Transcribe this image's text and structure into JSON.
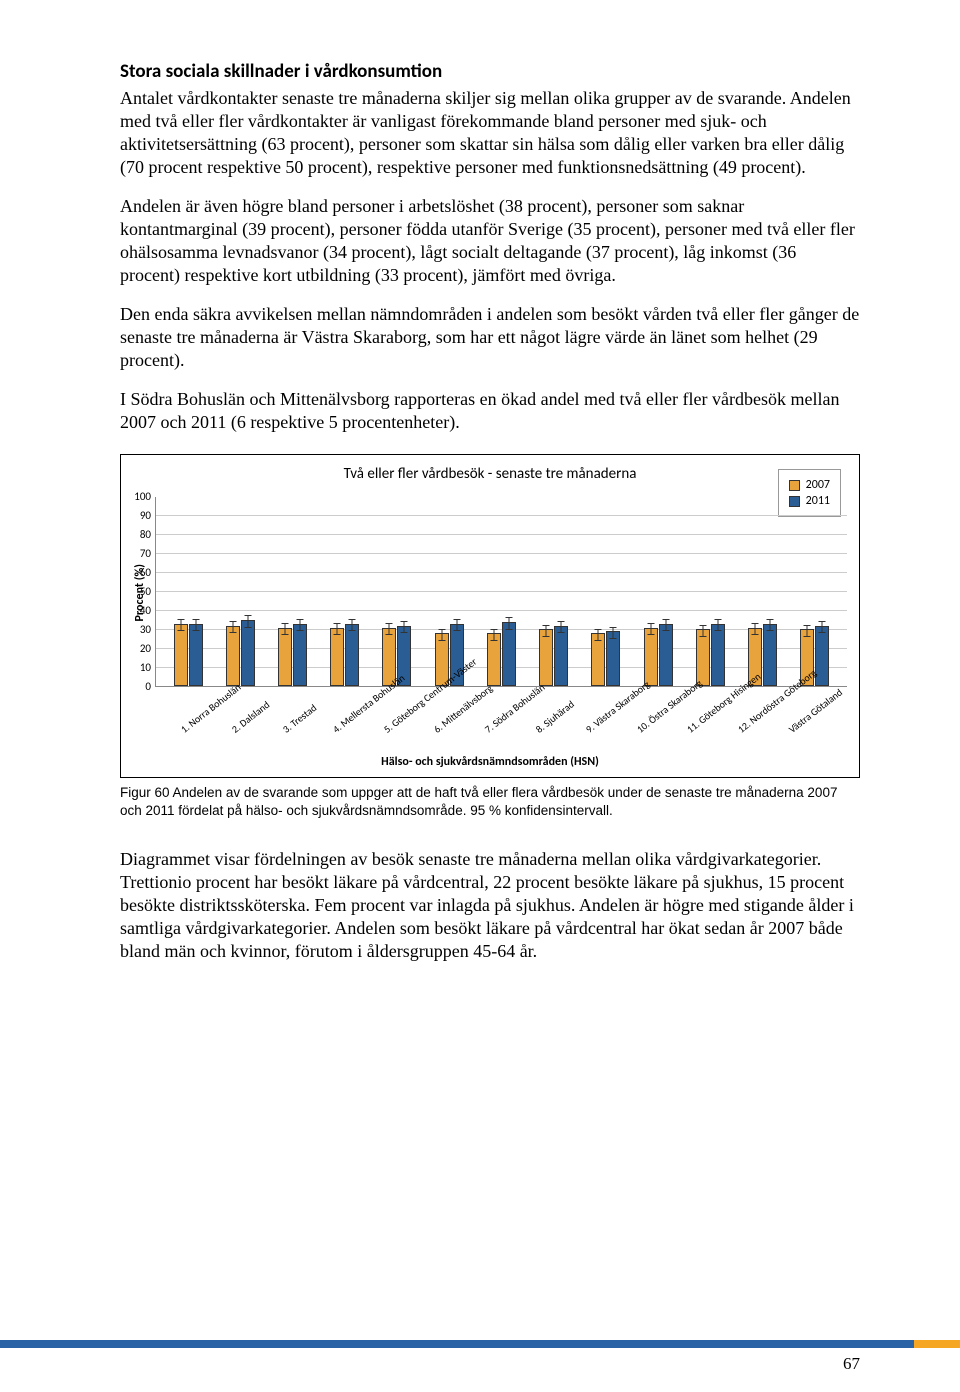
{
  "heading": "Stora sociala skillnader i vårdkonsumtion",
  "para1": "Antalet vårdkontakter senaste tre månaderna skiljer sig mellan olika grupper av de svarande. Andelen med två eller fler vårdkontakter är vanligast förekommande bland personer med sjuk- och aktivitetsersättning (63 procent), personer som skattar sin hälsa som dålig eller varken bra eller dålig (70 procent respektive 50 procent), respektive personer med funktionsnedsättning (49 procent).",
  "para2": "Andelen är även högre bland personer i arbetslöshet (38 procent), personer som saknar kontantmarginal (39 procent), personer födda utanför Sverige (35 procent), personer med två eller fler ohälsosamma levnadsvanor (34 procent), lågt socialt deltagande (37 procent), låg inkomst (36 procent) respektive kort utbildning (33 procent), jämfört med övriga.",
  "para3": "Den enda säkra avvikelsen mellan nämndområden i andelen som besökt vården två eller fler gånger de senaste tre månaderna är Västra Skaraborg, som har ett något lägre värde än länet som helhet (29 procent).",
  "para4": "I Södra Bohuslän och Mittenälvsborg rapporteras en ökad andel med två eller fler vårdbesök mellan 2007 och 2011 (6 respektive 5 procentenheter).",
  "chart": {
    "type": "bar",
    "title": "Två eller fler vårdbesök - senaste tre månaderna",
    "y_label": "Procent (%)",
    "x_label": "Hälso- och sjukvårdsnämndsområden (HSN)",
    "ylim_max": 100,
    "ytick_step": 10,
    "yticks": [
      "100",
      "90",
      "80",
      "70",
      "60",
      "50",
      "40",
      "30",
      "20",
      "10",
      "0"
    ],
    "grid_color": "#cccccc",
    "series": [
      {
        "name": "2007",
        "color": "#e8a33d"
      },
      {
        "name": "2011",
        "color": "#2a5d94"
      }
    ],
    "categories": [
      "1. Norra Bohuslän",
      "2. Dalsland",
      "3. Trestad",
      "4. Mellerstа Bohuslän",
      "5. Göteborg Centrum-Väster",
      "6. Mittenälvsborg",
      "7. Södra Bohuslän",
      "8. Sjuhärad",
      "9. Västra Skaraborg",
      "10. Östra Skaraborg",
      "11. Göteborg Hisingen",
      "12. Nordöstra Göteborg",
      "Västra Götaland"
    ],
    "values_2007": [
      33,
      32,
      31,
      31,
      31,
      28,
      28,
      30,
      28,
      31,
      30,
      31,
      30
    ],
    "values_2011": [
      33,
      35,
      33,
      33,
      32,
      33,
      34,
      32,
      29,
      33,
      33,
      33,
      32
    ],
    "error_pct": 3
  },
  "caption": "Figur 60 Andelen av de svarande som uppger att de haft två eller flera vårdbesök under de senaste tre månaderna 2007 och 2011 fördelat på hälso- och sjukvårdsnämndsområde. 95 % konfidensintervall.",
  "para5": "Diagrammet visar fördelningen av besök senaste tre månaderna mellan olika vårdgivarkategorier. Trettionio procent har besökt läkare på vårdcentral, 22 procent besökte läkare på sjukhus, 15 procent besökte distriktssköterska. Fem procent var inlagda på sjukhus. Andelen är högre med stigande ålder i samtliga vårdgivarkategorier. Andelen som besökt läkare på vårdcentral har ökat sedan år 2007 både bland män och kvinnor, förutom i åldersgruppen 45-64 år.",
  "page_number": "67",
  "footer_blue": "#2a63a5",
  "footer_orange": "#f5a623"
}
